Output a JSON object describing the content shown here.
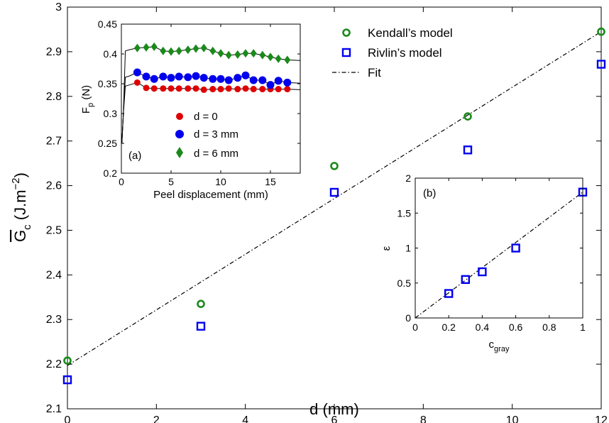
{
  "chart_data": [
    {
      "type": "scatter",
      "xlabel": "d (mm)",
      "ylabel_main": "G",
      "ylabel_sub": "c",
      "ylabel_unit": "(J.m",
      "ylabel_exp": "−2",
      "ylabel_close": ")",
      "xlim": [
        0,
        12
      ],
      "ylim": [
        2.1,
        3.0
      ],
      "xticks": [
        "0",
        "2",
        "4",
        "6",
        "8",
        "10",
        "12"
      ],
      "yticks": [
        "2.1",
        "2.2",
        "2.3",
        "2.4",
        "2.5",
        "2.6",
        "2.7",
        "2.8",
        "2.9",
        "3"
      ],
      "legend_placement": "top-right",
      "series": [
        {
          "name": "Kendall’s model",
          "color": "#1a8a1a",
          "marker": "circle",
          "x": [
            0,
            3,
            6,
            9,
            12
          ],
          "y": [
            2.208,
            2.335,
            2.644,
            2.755,
            2.945
          ]
        },
        {
          "name": "Rivlin’s model",
          "color": "#0000ee",
          "marker": "square",
          "x": [
            0,
            3,
            6,
            9,
            12
          ],
          "y": [
            2.165,
            2.285,
            2.585,
            2.68,
            2.872
          ]
        },
        {
          "name": "Fit",
          "color": "#000000",
          "marker": "dashdot-line",
          "x": [
            0,
            12
          ],
          "y": [
            2.197,
            2.945
          ]
        }
      ]
    },
    {
      "type": "line",
      "panel_label": "(a)",
      "xlabel": "Peel displacement (mm)",
      "ylabel_main": "F",
      "ylabel_sub": "p",
      "ylabel_unit": " (N)",
      "xlim": [
        0,
        18
      ],
      "ylim": [
        0.2,
        0.45
      ],
      "xticks": [
        "0",
        "5",
        "10",
        "15"
      ],
      "yticks": [
        "0.2",
        "0.25",
        "0.3",
        "0.35",
        "0.4",
        "0.45"
      ],
      "legend_placement": "bottom-center",
      "series": [
        {
          "name": "d = 0",
          "color": "#e00000",
          "marker": "circle",
          "x": [
            1.6,
            2.5,
            3.3,
            4.2,
            5.0,
            5.8,
            6.7,
            7.5,
            8.3,
            9.2,
            10.0,
            10.8,
            11.7,
            12.5,
            13.3,
            14.2,
            15.0,
            15.8,
            16.7
          ],
          "y": [
            0.352,
            0.343,
            0.342,
            0.342,
            0.342,
            0.342,
            0.342,
            0.342,
            0.34,
            0.341,
            0.341,
            0.342,
            0.341,
            0.342,
            0.341,
            0.341,
            0.341,
            0.341,
            0.341
          ],
          "curve_plateau": 0.342
        },
        {
          "name": "d = 3 mm",
          "color": "#0000ee",
          "marker": "circle",
          "x": [
            1.6,
            2.5,
            3.3,
            4.2,
            5.0,
            5.8,
            6.7,
            7.5,
            8.3,
            9.2,
            10.0,
            10.8,
            11.7,
            12.5,
            13.3,
            14.2,
            15.0,
            15.8,
            16.7
          ],
          "y": [
            0.369,
            0.362,
            0.358,
            0.362,
            0.36,
            0.362,
            0.361,
            0.363,
            0.36,
            0.358,
            0.358,
            0.356,
            0.36,
            0.364,
            0.356,
            0.356,
            0.348,
            0.355,
            0.352
          ],
          "curve_plateau": 0.357
        },
        {
          "name": "d = 6 mm",
          "color": "#1a8a1a",
          "marker": "diamond",
          "x": [
            1.6,
            2.5,
            3.3,
            4.2,
            5.0,
            5.8,
            6.7,
            7.5,
            8.3,
            9.2,
            10.0,
            10.8,
            11.7,
            12.5,
            13.3,
            14.2,
            15.0,
            15.8,
            16.7
          ],
          "y": [
            0.41,
            0.411,
            0.412,
            0.405,
            0.404,
            0.405,
            0.407,
            0.409,
            0.41,
            0.405,
            0.401,
            0.398,
            0.399,
            0.401,
            0.401,
            0.398,
            0.395,
            0.392,
            0.39
          ],
          "curve_plateau": 0.401
        }
      ]
    },
    {
      "type": "scatter",
      "panel_label": "(b)",
      "xlabel_main": "c",
      "xlabel_sub": "gray",
      "ylabel": "ε",
      "xlim": [
        0,
        1
      ],
      "ylim": [
        0,
        2
      ],
      "xticks": [
        "0",
        "0.2",
        "0.4",
        "0.6",
        "0.8",
        "1"
      ],
      "yticks": [
        "0",
        "0.5",
        "1",
        "1.5",
        "2"
      ],
      "series": [
        {
          "name": "",
          "color": "#0000ee",
          "marker": "square",
          "x": [
            0.2,
            0.3,
            0.4,
            0.6,
            1.0
          ],
          "y": [
            0.35,
            0.55,
            0.66,
            1.0,
            1.8
          ]
        },
        {
          "name": "",
          "color": "#000000",
          "marker": "dashdot-line",
          "x": [
            0,
            1.0
          ],
          "y": [
            0,
            1.8
          ]
        }
      ]
    }
  ]
}
